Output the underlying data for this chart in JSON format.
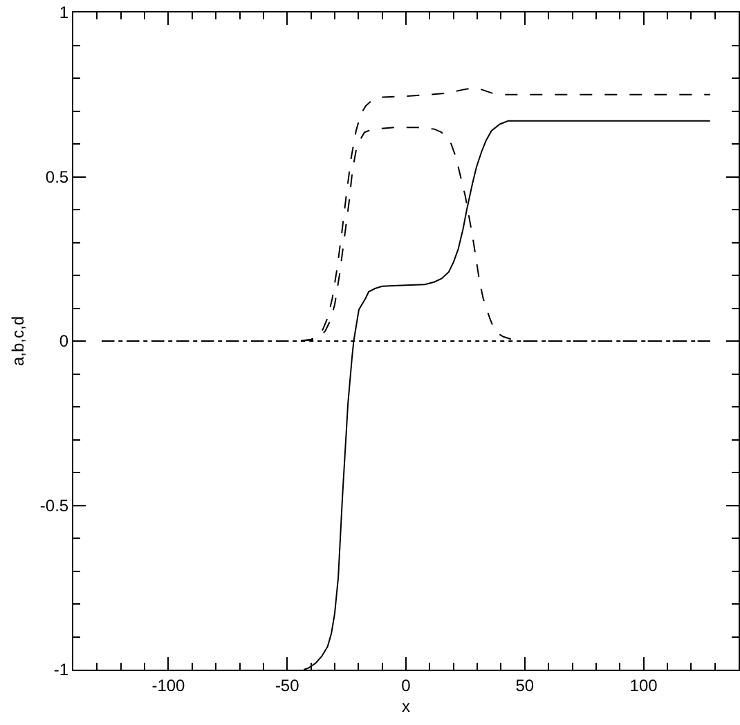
{
  "chart_data": {
    "type": "line",
    "xlabel": "x",
    "ylabel": "a,b,c,d",
    "xlim": [
      -140,
      140
    ],
    "ylim": [
      -1,
      1
    ],
    "xticks": [
      {
        "value": -130,
        "label": null
      },
      {
        "value": -120,
        "label": null
      },
      {
        "value": -110,
        "label": null
      },
      -100,
      {
        "value": -90,
        "label": null
      },
      {
        "value": -80,
        "label": null
      },
      {
        "value": -70,
        "label": null
      },
      {
        "value": -60,
        "label": null
      },
      -50,
      {
        "value": -40,
        "label": null
      },
      {
        "value": -30,
        "label": null
      },
      {
        "value": -20,
        "label": null
      },
      {
        "value": -10,
        "label": null
      },
      0,
      {
        "value": 10,
        "label": null
      },
      {
        "value": 20,
        "label": null
      },
      {
        "value": 30,
        "label": null
      },
      {
        "value": 40,
        "label": null
      },
      50,
      {
        "value": 60,
        "label": null
      },
      {
        "value": 70,
        "label": null
      },
      {
        "value": 80,
        "label": null
      },
      {
        "value": 90,
        "label": null
      },
      100,
      {
        "value": 110,
        "label": null
      },
      {
        "value": 120,
        "label": null
      },
      {
        "value": 130,
        "label": null
      }
    ],
    "yticks": [
      -1,
      {
        "value": -0.9,
        "label": null
      },
      {
        "value": -0.8,
        "label": null
      },
      {
        "value": -0.7,
        "label": null
      },
      {
        "value": -0.6,
        "label": null
      },
      -0.5,
      {
        "value": -0.4,
        "label": null
      },
      {
        "value": -0.3,
        "label": null
      },
      {
        "value": -0.2,
        "label": null
      },
      {
        "value": -0.1,
        "label": null
      },
      0,
      {
        "value": 0.1,
        "label": null
      },
      {
        "value": 0.2,
        "label": null
      },
      {
        "value": 0.3,
        "label": null
      },
      {
        "value": 0.4,
        "label": null
      },
      0.5,
      {
        "value": 0.6,
        "label": null
      },
      {
        "value": 0.7,
        "label": null
      },
      {
        "value": 0.8,
        "label": null
      },
      {
        "value": 0.9,
        "label": null
      },
      1
    ],
    "series": [
      {
        "color": "#000000",
        "line_style": "dotted",
        "x": [
          -128,
          128
        ],
        "values": [
          0,
          0
        ]
      },
      {
        "color": "#000000",
        "line_style": "dashed",
        "x": [
          -128,
          -45,
          -40,
          -37,
          -34,
          -32,
          -30,
          -28,
          -26,
          -24,
          -22.5,
          -21,
          -19.5,
          -17.5,
          -14,
          -5,
          5,
          12,
          15,
          17,
          19,
          21,
          23,
          25,
          26.5,
          28,
          29.5,
          31,
          32.5,
          34,
          35.5,
          37,
          39,
          41,
          45,
          50,
          128
        ],
        "values": [
          0,
          0,
          0.003,
          0.01,
          0.03,
          0.06,
          0.11,
          0.2,
          0.31,
          0.42,
          0.52,
          0.58,
          0.61,
          0.635,
          0.645,
          0.65,
          0.65,
          0.645,
          0.635,
          0.62,
          0.6,
          0.56,
          0.5,
          0.44,
          0.38,
          0.32,
          0.25,
          0.18,
          0.13,
          0.096,
          0.065,
          0.04,
          0.022,
          0.013,
          0.004,
          0,
          0
        ]
      },
      {
        "color": "#000000",
        "line_style": "dashed",
        "x": [
          -128,
          -45,
          -40,
          -37,
          -35,
          -33,
          -31,
          -29,
          -27,
          -25,
          -23,
          -21,
          -19,
          -17,
          -14,
          -10,
          0,
          10,
          18,
          24,
          28,
          32,
          36,
          41,
          128
        ],
        "values": [
          0,
          0,
          0.005,
          0.015,
          0.035,
          0.07,
          0.13,
          0.22,
          0.33,
          0.45,
          0.56,
          0.64,
          0.69,
          0.715,
          0.735,
          0.742,
          0.745,
          0.75,
          0.755,
          0.765,
          0.77,
          0.765,
          0.755,
          0.75,
          0.75
        ]
      },
      {
        "color": "#000000",
        "line_style": "solid",
        "x": [
          -43,
          -41,
          -38,
          -35.5,
          -33,
          -31.4,
          -30,
          -28.5,
          -26.7,
          -24.4,
          -22.7,
          -22,
          -19.8,
          -17,
          -15.7,
          -13,
          -10,
          0,
          8,
          12,
          15,
          18,
          20,
          22,
          24,
          25.6,
          28,
          29.7,
          32,
          33.7,
          36,
          39.5,
          43,
          47,
          55,
          128
        ],
        "values": [
          -1,
          -0.995,
          -0.98,
          -0.96,
          -0.93,
          -0.89,
          -0.83,
          -0.72,
          -0.47,
          -0.19,
          -0.05,
          0,
          0.096,
          0.13,
          0.15,
          0.16,
          0.167,
          0.17,
          0.172,
          0.18,
          0.19,
          0.21,
          0.24,
          0.28,
          0.34,
          0.4,
          0.48,
          0.53,
          0.58,
          0.61,
          0.64,
          0.66,
          0.67,
          0.67,
          0.67,
          0.67
        ]
      }
    ]
  }
}
